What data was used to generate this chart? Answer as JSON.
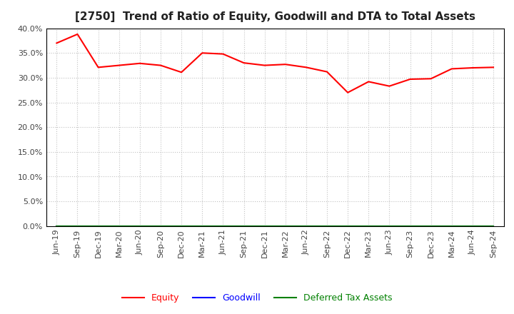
{
  "title": "[2750]  Trend of Ratio of Equity, Goodwill and DTA to Total Assets",
  "x_labels": [
    "Jun-19",
    "Sep-19",
    "Dec-19",
    "Mar-20",
    "Jun-20",
    "Sep-20",
    "Dec-20",
    "Mar-21",
    "Jun-21",
    "Sep-21",
    "Dec-21",
    "Mar-22",
    "Jun-22",
    "Sep-22",
    "Dec-22",
    "Mar-23",
    "Jun-23",
    "Sep-23",
    "Dec-23",
    "Mar-24",
    "Jun-24",
    "Sep-24"
  ],
  "equity": [
    37.0,
    38.8,
    32.1,
    32.5,
    32.9,
    32.5,
    31.1,
    35.0,
    34.8,
    33.0,
    32.5,
    32.7,
    32.1,
    31.2,
    27.0,
    29.2,
    28.3,
    29.7,
    29.8,
    31.8,
    32.0,
    32.1
  ],
  "goodwill": [
    0,
    0,
    0,
    0,
    0,
    0,
    0,
    0,
    0,
    0,
    0,
    0,
    0,
    0,
    0,
    0,
    0,
    0,
    0,
    0,
    0,
    0
  ],
  "dta": [
    0,
    0,
    0,
    0,
    0,
    0,
    0,
    0,
    0,
    0,
    0,
    0,
    0,
    0,
    0,
    0,
    0,
    0,
    0,
    0,
    0,
    0
  ],
  "equity_color": "#FF0000",
  "goodwill_color": "#0000FF",
  "dta_color": "#008000",
  "background_color": "#FFFFFF",
  "plot_bg_color": "#FFFFFF",
  "grid_color": "#BBBBBB",
  "ylim": [
    0,
    40
  ],
  "yticks": [
    0,
    5,
    10,
    15,
    20,
    25,
    30,
    35,
    40
  ],
  "legend_labels": [
    "Equity",
    "Goodwill",
    "Deferred Tax Assets"
  ],
  "title_fontsize": 11,
  "axis_fontsize": 8,
  "legend_fontsize": 9,
  "tick_label_color": "#444444",
  "title_color": "#222222"
}
